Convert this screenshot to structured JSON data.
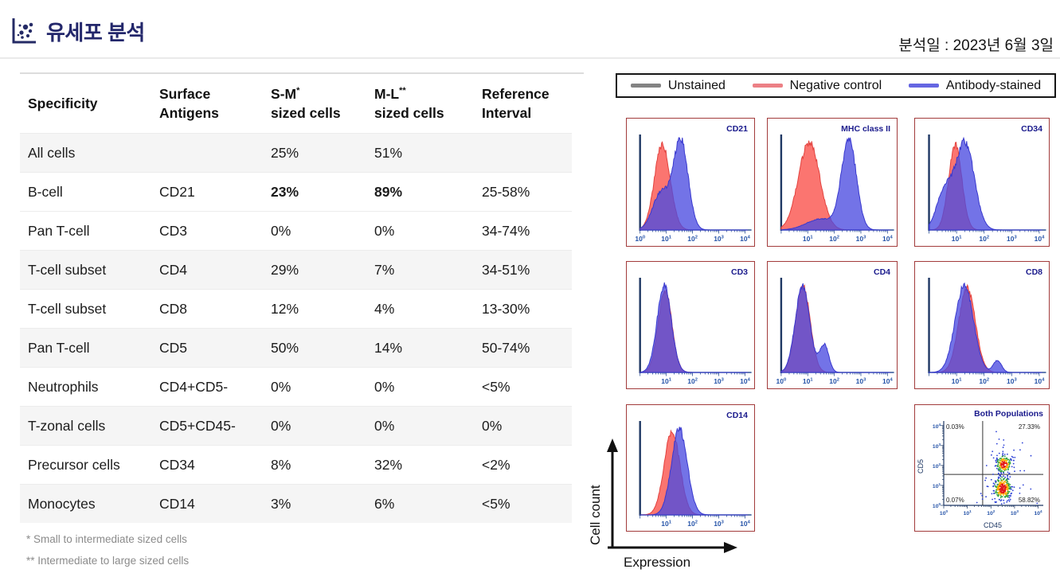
{
  "header": {
    "title": "유세포 분석",
    "date_label": "분석일 : 2023년 6월 3일"
  },
  "table": {
    "columns": [
      {
        "line1": "Specificity",
        "sup": "",
        "line2": ""
      },
      {
        "line1": "Surface",
        "sup": "",
        "line2": "Antigens"
      },
      {
        "line1": "S-M",
        "sup": "*",
        "line2": "sized cells"
      },
      {
        "line1": "M-L",
        "sup": "**",
        "line2": "sized cells"
      },
      {
        "line1": "Reference",
        "sup": "",
        "line2": "Interval"
      }
    ],
    "rows": [
      {
        "cells": [
          "All cells",
          "",
          "25%",
          "51%",
          ""
        ],
        "shaded": true,
        "bold": []
      },
      {
        "cells": [
          "B-cell",
          "CD21",
          "23%",
          "89%",
          "25-58%"
        ],
        "shaded": false,
        "bold": [
          2,
          3
        ]
      },
      {
        "cells": [
          "Pan T-cell",
          "CD3",
          "0%",
          "0%",
          "34-74%"
        ],
        "shaded": false,
        "bold": []
      },
      {
        "cells": [
          "T-cell subset",
          "CD4",
          "29%",
          "7%",
          "34-51%"
        ],
        "shaded": true,
        "bold": []
      },
      {
        "cells": [
          "T-cell subset",
          "CD8",
          "12%",
          "4%",
          "13-30%"
        ],
        "shaded": false,
        "bold": []
      },
      {
        "cells": [
          "Pan T-cell",
          "CD5",
          "50%",
          "14%",
          "50-74%"
        ],
        "shaded": true,
        "bold": []
      },
      {
        "cells": [
          "Neutrophils",
          "CD4+CD5-",
          "0%",
          "0%",
          "<5%"
        ],
        "shaded": false,
        "bold": []
      },
      {
        "cells": [
          "T-zonal cells",
          "CD5+CD45-",
          "0%",
          "0%",
          "0%"
        ],
        "shaded": true,
        "bold": []
      },
      {
        "cells": [
          "Precursor cells",
          "CD34",
          "8%",
          "32%",
          "<2%"
        ],
        "shaded": false,
        "bold": []
      },
      {
        "cells": [
          "Monocytes",
          "CD14",
          "3%",
          "6%",
          "<5%"
        ],
        "shaded": true,
        "bold": []
      }
    ],
    "footnotes": [
      "* Small to intermediate sized cells",
      "** Intermediate to large sized cells"
    ]
  },
  "legend": {
    "items": [
      {
        "label": "Unstained",
        "color": "#838383"
      },
      {
        "label": "Negative control",
        "color": "#EC8085"
      },
      {
        "label": "Antibody-stained",
        "color": "#6566E2"
      }
    ]
  },
  "axes": {
    "y_label": "Cell count",
    "x_label": "Expression"
  },
  "colors": {
    "title_navy": "#23276B",
    "panel_border": "#A23B3B",
    "panel_title_navy": "#1A1A8C",
    "axis_navy": "#1F3864",
    "tick_label_blue": "#2553A8",
    "negative_control_fill": "#FA625C",
    "antibody_stained_fill": "#4B4BE0",
    "overlap_purple": "#6E50C5"
  },
  "chart_data": {
    "type": "heatmap",
    "description": "Flow cytometry: 7 overlay histograms (log10 x-axis 10^0..10^4, y = cell count) plus one CD45/CD5 density dot plot. Histogram peaks given as gaussians in log10-exponent units (c=center, s=sigma, h=relative height 0..1).",
    "x_scale": "log10 from 10^0 to 10^4",
    "histograms": [
      {
        "name": "CD21",
        "ticks": [
          0,
          1,
          2,
          3,
          4
        ],
        "red": [
          {
            "c": 0.85,
            "s": 0.3,
            "h": 0.92
          }
        ],
        "blue": [
          {
            "c": 1.55,
            "s": 0.28,
            "h": 0.97
          },
          {
            "c": 0.8,
            "s": 0.32,
            "h": 0.4
          }
        ]
      },
      {
        "name": "MHC class II",
        "ticks": [
          1,
          2,
          3,
          4
        ],
        "red": [
          {
            "c": 1.05,
            "s": 0.4,
            "h": 0.95
          }
        ],
        "blue": [
          {
            "c": 2.55,
            "s": 0.28,
            "h": 0.97
          },
          {
            "c": 1.5,
            "s": 0.55,
            "h": 0.12
          }
        ]
      },
      {
        "name": "CD34",
        "ticks": [
          1,
          2,
          3,
          4
        ],
        "red": [
          {
            "c": 0.95,
            "s": 0.24,
            "h": 0.92
          }
        ],
        "blue": [
          {
            "c": 1.3,
            "s": 0.34,
            "h": 0.95
          },
          {
            "c": 0.55,
            "s": 0.28,
            "h": 0.4
          }
        ]
      },
      {
        "name": "CD3",
        "ticks": [
          1,
          2,
          3,
          4
        ],
        "red": [
          {
            "c": 0.95,
            "s": 0.26,
            "h": 0.9
          }
        ],
        "blue": [
          {
            "c": 0.92,
            "s": 0.27,
            "h": 0.95
          }
        ]
      },
      {
        "name": "CD4",
        "ticks": [
          0,
          1,
          2,
          3,
          4
        ],
        "red": [
          {
            "c": 0.82,
            "s": 0.27,
            "h": 0.95
          }
        ],
        "blue": [
          {
            "c": 0.8,
            "s": 0.27,
            "h": 0.95
          },
          {
            "c": 1.62,
            "s": 0.17,
            "h": 0.3
          }
        ]
      },
      {
        "name": "CD8",
        "ticks": [
          1,
          2,
          3,
          4
        ],
        "red": [
          {
            "c": 1.38,
            "s": 0.3,
            "h": 0.92
          }
        ],
        "blue": [
          {
            "c": 1.28,
            "s": 0.33,
            "h": 0.95
          },
          {
            "c": 2.48,
            "s": 0.15,
            "h": 0.13
          }
        ]
      },
      {
        "name": "CD14",
        "ticks": [
          1,
          2,
          3,
          4
        ],
        "red": [
          {
            "c": 1.22,
            "s": 0.3,
            "h": 0.92
          }
        ],
        "blue": [
          {
            "c": 1.5,
            "s": 0.3,
            "h": 0.95
          }
        ]
      }
    ],
    "dot_plot": {
      "name": "Both Populations",
      "xlabel": "CD45",
      "ylabel": "CD5",
      "x_ticks": [
        0,
        1,
        2,
        3,
        4
      ],
      "y_ticks": [
        0,
        1,
        2,
        3,
        4
      ],
      "gate_x_exp": 1.65,
      "gate_y_exp": 1.55,
      "quadrant_labels": {
        "top_left": "0.03%",
        "top_right": "27.33%",
        "bottom_left": "0.07%",
        "bottom_right": "58.82%"
      },
      "clusters": [
        {
          "cx_exp": 2.55,
          "cy_exp": 2.05,
          "sx": 0.16,
          "sy": 0.22,
          "n": 200
        },
        {
          "cx_exp": 2.5,
          "cy_exp": 0.85,
          "sx": 0.18,
          "sy": 0.3,
          "n": 330
        }
      ]
    }
  }
}
